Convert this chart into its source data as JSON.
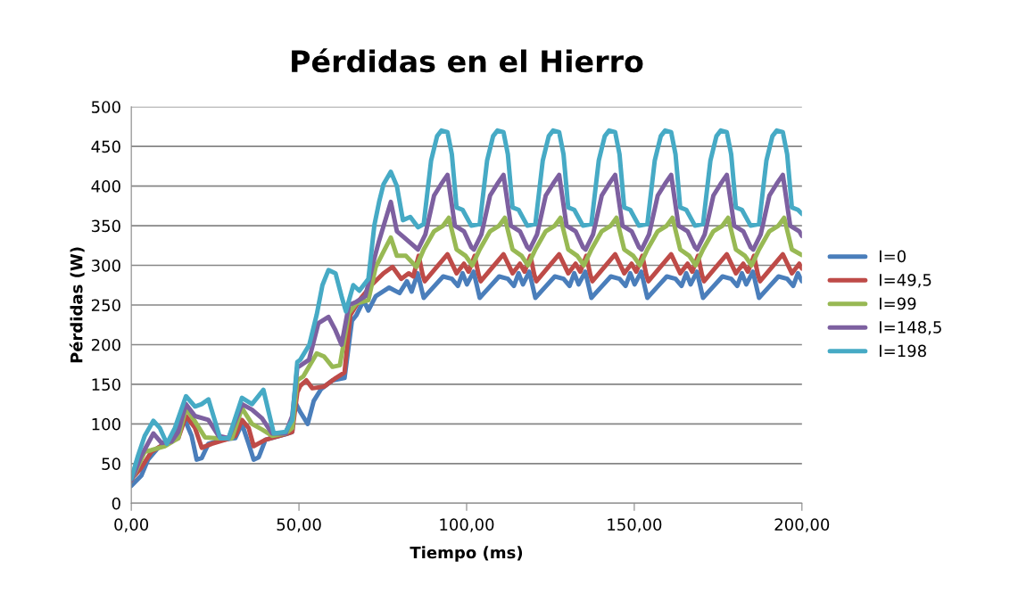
{
  "chart_data": {
    "type": "line",
    "title": "Pérdidas en el Hierro",
    "xlabel": "Tiempo (ms)",
    "ylabel": "Pérdidas (W)",
    "xlim": [
      0,
      200
    ],
    "xticks": [
      {
        "value": 0,
        "label": "0,00"
      },
      {
        "value": 50,
        "label": "50,00"
      },
      {
        "value": 100,
        "label": "100,00"
      },
      {
        "value": 150,
        "label": "150,00"
      },
      {
        "value": 200,
        "label": "200,00"
      }
    ],
    "ylim": [
      0,
      500
    ],
    "yticks": [
      0,
      50,
      100,
      150,
      200,
      250,
      300,
      350,
      400,
      450,
      500
    ],
    "grid": "y",
    "legend": "right",
    "marker": "none",
    "line_style": "solid",
    "series": [
      {
        "name": "I=0",
        "color": "#4a7ebb",
        "x": [
          0,
          3,
          5,
          8,
          12,
          15,
          16,
          18,
          19.5,
          21,
          23,
          27,
          31,
          33,
          35,
          36.5,
          38,
          40,
          46,
          48,
          48.7,
          50.4,
          52.6,
          54.4,
          56.6,
          60,
          63.6,
          65.8,
          67.1,
          69.3,
          70.7,
          72.9,
          76.9,
          80,
          82.2,
          83.6,
          85.4,
          87.2,
          90,
          93,
          95.6,
          97.4,
          98.8,
          100.1,
          102.1,
          103.9,
          106.7,
          109.7,
          112.3,
          114.1,
          115.5,
          116.8,
          118.7,
          120.5,
          123.3,
          126.3,
          128.9,
          130.7,
          132.1,
          133.4,
          135.4,
          137.2,
          140,
          143,
          145.6,
          147.4,
          148.8,
          150.1,
          152.1,
          153.9,
          156.7,
          159.7,
          162.3,
          164.1,
          165.5,
          166.8,
          168.7,
          170.5,
          173.3,
          176.3,
          178.9,
          180.7,
          182.1,
          183.4,
          185.4,
          187.2,
          190,
          193,
          195.6,
          197.4,
          198.8,
          200
        ],
        "values": [
          22,
          35,
          55,
          70,
          80,
          100,
          105,
          85,
          55,
          57,
          75,
          80,
          82,
          100,
          75,
          55,
          58,
          80,
          87,
          90,
          129,
          115,
          100,
          129,
          144,
          155,
          158,
          230,
          237,
          256,
          243,
          261,
          272,
          265,
          280,
          267,
          290,
          259,
          272,
          286,
          283,
          274,
          290,
          276,
          292,
          259,
          272,
          286,
          283,
          274,
          290,
          276,
          292,
          259,
          272,
          286,
          283,
          274,
          290,
          276,
          292,
          259,
          272,
          286,
          283,
          274,
          290,
          276,
          292,
          259,
          272,
          286,
          283,
          274,
          290,
          276,
          292,
          259,
          272,
          286,
          283,
          274,
          290,
          276,
          292,
          259,
          272,
          286,
          283,
          274,
          290,
          280
        ]
      },
      {
        "name": "I=49,5",
        "color": "#be4b48",
        "x": [
          0,
          3,
          6,
          10,
          14,
          16.3,
          19,
          21,
          24,
          28,
          31,
          33,
          35,
          36.5,
          40,
          46,
          48,
          49.5,
          50.4,
          52.2,
          54,
          57.5,
          61,
          63.6,
          65.3,
          68,
          71.6,
          75.2,
          77.9,
          80.5,
          82.7,
          84.1,
          85.7,
          86.9,
          87.5,
          90.3,
          94.3,
          97,
          99.2,
          100.6,
          102.4,
          103.6,
          104.2,
          107,
          111,
          113.7,
          115.9,
          117.3,
          119,
          120.2,
          120.8,
          123.6,
          127.6,
          130.3,
          132.5,
          133.9,
          135.7,
          136.9,
          137.5,
          140.3,
          144.3,
          147,
          149.2,
          150.6,
          152.4,
          153.6,
          154.2,
          157,
          161,
          163.7,
          165.9,
          167.3,
          169,
          170.2,
          170.8,
          173.6,
          177.6,
          180.3,
          182.5,
          183.9,
          185.7,
          186.9,
          187.5,
          190.3,
          194.3,
          197,
          199.2,
          200
        ],
        "values": [
          30,
          45,
          65,
          75,
          82,
          110,
          95,
          70,
          75,
          80,
          85,
          105,
          95,
          72,
          80,
          87,
          90,
          140,
          148,
          155,
          145,
          147,
          158,
          165,
          237,
          256,
          275,
          290,
          298,
          283,
          290,
          286,
          312,
          288,
          280,
          294,
          314,
          290,
          302,
          292,
          312,
          288,
          280,
          294,
          314,
          290,
          302,
          292,
          312,
          288,
          280,
          294,
          314,
          290,
          302,
          292,
          312,
          288,
          280,
          294,
          314,
          290,
          302,
          292,
          312,
          288,
          280,
          294,
          314,
          290,
          302,
          292,
          312,
          288,
          280,
          294,
          314,
          290,
          302,
          292,
          312,
          288,
          280,
          294,
          314,
          290,
          302,
          296
        ]
      },
      {
        "name": "I=99",
        "color": "#98b954",
        "x": [
          0,
          4,
          6,
          10,
          14,
          16.3,
          19,
          22,
          26,
          30,
          33,
          36,
          39,
          42,
          46,
          48,
          49.5,
          51.3,
          55.3,
          57.5,
          60,
          62.2,
          64.9,
          67.1,
          70.7,
          72.9,
          75.2,
          77.4,
          79.2,
          81.9,
          85,
          87.2,
          90.3,
          93,
          94.7,
          97,
          99.7,
          101.7,
          103.9,
          107,
          109.7,
          111.4,
          113.7,
          116.4,
          118.3,
          120.5,
          123.6,
          126.3,
          128,
          130.3,
          133,
          135,
          137.2,
          140.3,
          143,
          144.7,
          147,
          149.7,
          151.7,
          153.9,
          157,
          159.7,
          161.4,
          163.7,
          166.4,
          168.3,
          170.5,
          173.6,
          176.3,
          178,
          180.3,
          183,
          185,
          187.2,
          190.3,
          193,
          194.7,
          197,
          200
        ],
        "values": [
          28,
          65,
          67,
          72,
          82,
          120,
          103,
          83,
          82,
          82,
          120,
          100,
          93,
          85,
          88,
          95,
          155,
          160,
          189,
          185,
          172,
          174,
          240,
          252,
          256,
          298,
          317,
          335,
          312,
          312,
          298,
          320,
          343,
          350,
          360,
          320,
          312,
          300,
          320,
          343,
          350,
          360,
          320,
          312,
          300,
          320,
          343,
          350,
          360,
          320,
          312,
          300,
          320,
          343,
          350,
          360,
          320,
          312,
          300,
          320,
          343,
          350,
          360,
          320,
          312,
          300,
          320,
          343,
          350,
          360,
          320,
          312,
          300,
          320,
          343,
          350,
          360,
          320,
          313
        ]
      },
      {
        "name": "I=148,5",
        "color": "#7d60a0",
        "x": [
          0,
          3,
          6.6,
          9,
          12,
          14,
          16.3,
          19,
          23,
          26,
          29,
          33,
          36,
          39,
          42,
          46,
          48,
          49.5,
          53,
          55.8,
          58.8,
          60.9,
          62.7,
          64.9,
          67.1,
          69.8,
          72.5,
          73.9,
          77.4,
          79.2,
          81.4,
          85.5,
          87.7,
          90.3,
          92.5,
          94.3,
          96.5,
          99.2,
          101.4,
          102.2,
          104.4,
          107,
          109.2,
          111,
          113.2,
          115.9,
          118.1,
          118.8,
          121,
          123.6,
          125.8,
          127.6,
          129.8,
          132.5,
          134.7,
          135.5,
          137.7,
          140.3,
          142.5,
          144.3,
          146.5,
          149.2,
          151.4,
          152.2,
          154.4,
          157,
          159.2,
          161,
          163.2,
          165.9,
          168.1,
          168.8,
          171,
          173.6,
          175.8,
          177.6,
          179.8,
          182.5,
          184.7,
          185.5,
          187.7,
          190.3,
          192.5,
          194.3,
          196.5,
          199.2,
          200
        ],
        "values": [
          28,
          60,
          88,
          76,
          78,
          90,
          125,
          110,
          105,
          85,
          82,
          125,
          118,
          107,
          88,
          88,
          110,
          171,
          181,
          227,
          235,
          218,
          200,
          250,
          254,
          261,
          309,
          331,
          380,
          343,
          335,
          320,
          339,
          388,
          403,
          414,
          350,
          343,
          323,
          320,
          339,
          388,
          403,
          414,
          350,
          343,
          323,
          320,
          339,
          388,
          403,
          414,
          350,
          343,
          323,
          320,
          339,
          388,
          403,
          414,
          350,
          343,
          323,
          320,
          339,
          388,
          403,
          414,
          350,
          343,
          323,
          320,
          339,
          388,
          403,
          414,
          350,
          343,
          323,
          320,
          339,
          388,
          403,
          414,
          350,
          343,
          337
        ]
      },
      {
        "name": "I=198",
        "color": "#46aac5",
        "x": [
          0,
          2,
          4,
          6.6,
          8.5,
          10.6,
          13,
          16.3,
          19,
          21,
          23,
          26.5,
          29,
          33,
          36,
          39.4,
          42.5,
          46,
          48,
          49.5,
          50.4,
          53.1,
          55.3,
          57,
          58.8,
          60.9,
          62.7,
          64,
          66.2,
          68,
          70.7,
          72.5,
          73.9,
          75.2,
          77.4,
          79.2,
          81,
          83.2,
          85.5,
          87.2,
          89.4,
          91.2,
          92.5,
          94.3,
          95.6,
          97,
          98.8,
          101.4,
          103.9,
          106.1,
          107.9,
          109.2,
          111,
          112.3,
          113.7,
          115.5,
          118.1,
          120.5,
          122.7,
          124.5,
          125.8,
          127.6,
          128.9,
          130.3,
          132.1,
          134.7,
          137.2,
          139.4,
          141.2,
          142.5,
          144.3,
          145.6,
          147,
          148.8,
          151.4,
          153.9,
          156.1,
          157.9,
          159.2,
          161,
          162.3,
          163.7,
          165.5,
          168.1,
          170.5,
          172.7,
          174.5,
          175.8,
          177.6,
          178.9,
          180.3,
          182.1,
          184.7,
          187.2,
          189.4,
          191.2,
          192.5,
          194.3,
          195.6,
          197,
          198.8,
          200
        ],
        "values": [
          31,
          60,
          85,
          104,
          95,
          75,
          95,
          135,
          122,
          125,
          131,
          82,
          82,
          133,
          125,
          143,
          88,
          90,
          105,
          178,
          181,
          200,
          238,
          275,
          294,
          290,
          261,
          242,
          275,
          268,
          283,
          351,
          380,
          402,
          418,
          400,
          357,
          361,
          348,
          352,
          432,
          463,
          470,
          468,
          440,
          373,
          370,
          350,
          352,
          432,
          463,
          470,
          468,
          440,
          373,
          370,
          350,
          352,
          432,
          463,
          470,
          468,
          440,
          373,
          370,
          350,
          352,
          432,
          463,
          470,
          468,
          440,
          373,
          370,
          350,
          352,
          432,
          463,
          470,
          468,
          440,
          373,
          370,
          350,
          352,
          432,
          463,
          470,
          468,
          440,
          373,
          370,
          350,
          352,
          432,
          463,
          470,
          468,
          440,
          373,
          370,
          365
        ]
      }
    ]
  }
}
